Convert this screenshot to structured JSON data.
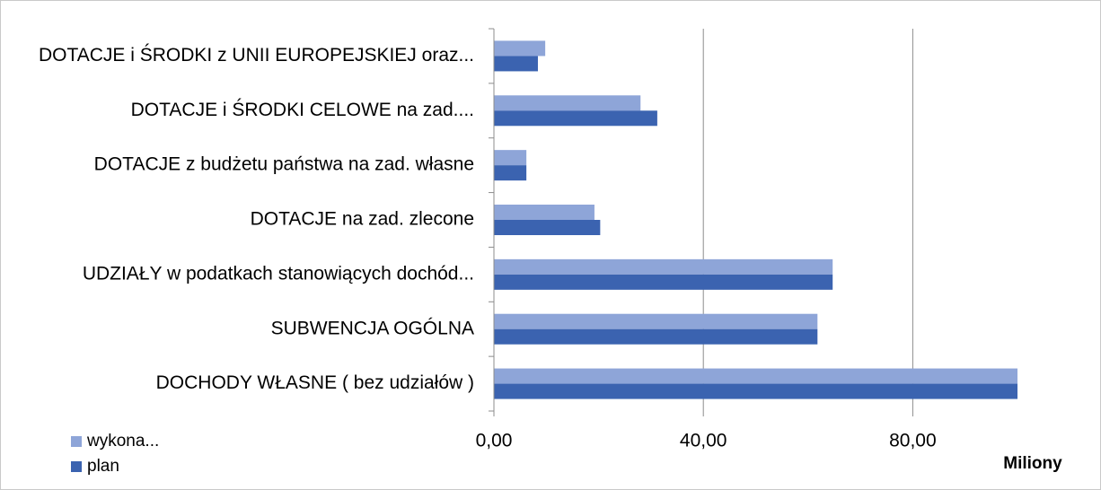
{
  "chart_data": {
    "type": "barh",
    "categories": [
      "DOTACJE i ŚRODKI z UNII EUROPEJSKIEJ oraz...",
      "DOTACJE i ŚRODKI CELOWE na zad....",
      "DOTACJE z budżetu państwa na zad. własne",
      "DOTACJE na zad. zlecone",
      "UDZIAŁY w podatkach stanowiących dochód...",
      "SUBWENCJA  OGÓLNA",
      "DOCHODY   WŁASNE ( bez udziałów )"
    ],
    "series": [
      {
        "name": "wykona...",
        "color": "#8ea5d8",
        "values": [
          9.8,
          28.0,
          6.2,
          19.2,
          64.7,
          61.8,
          100
        ]
      },
      {
        "name": "plan",
        "color": "#3b63b0",
        "values": [
          8.4,
          31.2,
          6.2,
          20.3,
          64.7,
          61.8,
          100
        ]
      }
    ],
    "xlim": [
      0,
      100
    ],
    "xticks": [
      {
        "value": 0,
        "label": "0,00"
      },
      {
        "value": 40,
        "label": "40,00"
      },
      {
        "value": 80,
        "label": "80,00"
      }
    ],
    "xlabel": "Miliony",
    "grid": true,
    "legend": "bottom-left"
  }
}
